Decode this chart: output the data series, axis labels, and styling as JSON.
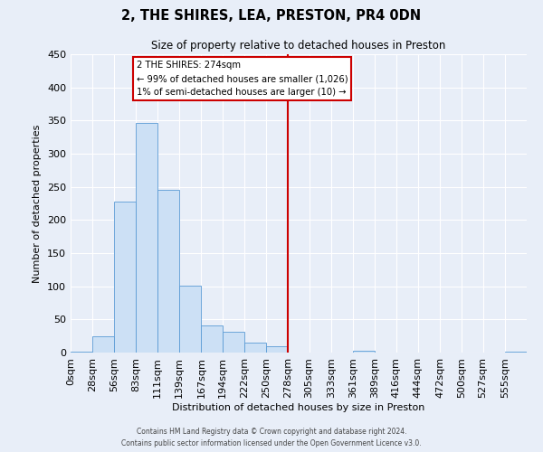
{
  "title": "2, THE SHIRES, LEA, PRESTON, PR4 0DN",
  "subtitle": "Size of property relative to detached houses in Preston",
  "xlabel": "Distribution of detached houses by size in Preston",
  "ylabel": "Number of detached properties",
  "bin_labels": [
    "0sqm",
    "28sqm",
    "56sqm",
    "83sqm",
    "111sqm",
    "139sqm",
    "167sqm",
    "194sqm",
    "222sqm",
    "250sqm",
    "278sqm",
    "305sqm",
    "333sqm",
    "361sqm",
    "389sqm",
    "416sqm",
    "444sqm",
    "472sqm",
    "500sqm",
    "527sqm",
    "555sqm"
  ],
  "bar_values": [
    2,
    25,
    228,
    346,
    246,
    101,
    41,
    31,
    15,
    10,
    0,
    0,
    0,
    3,
    0,
    0,
    0,
    0,
    0,
    0,
    2
  ],
  "bar_color": "#cce0f5",
  "bar_edge_color": "#5b9bd5",
  "vline_color": "#cc0000",
  "annotation_title": "2 THE SHIRES: 274sqm",
  "annotation_line1": "← 99% of detached houses are smaller (1,026)",
  "annotation_line2": "1% of semi-detached houses are larger (10) →",
  "annotation_box_color": "#cc0000",
  "background_color": "#e8eef8",
  "footer_line1": "Contains HM Land Registry data © Crown copyright and database right 2024.",
  "footer_line2": "Contains public sector information licensed under the Open Government Licence v3.0.",
  "ylim": [
    0,
    450
  ],
  "bin_starts": [
    0,
    28,
    56,
    83,
    111,
    139,
    167,
    194,
    222,
    250,
    278,
    305,
    333,
    361,
    389,
    416,
    444,
    472,
    500,
    527,
    555
  ],
  "vline_pos": 278
}
